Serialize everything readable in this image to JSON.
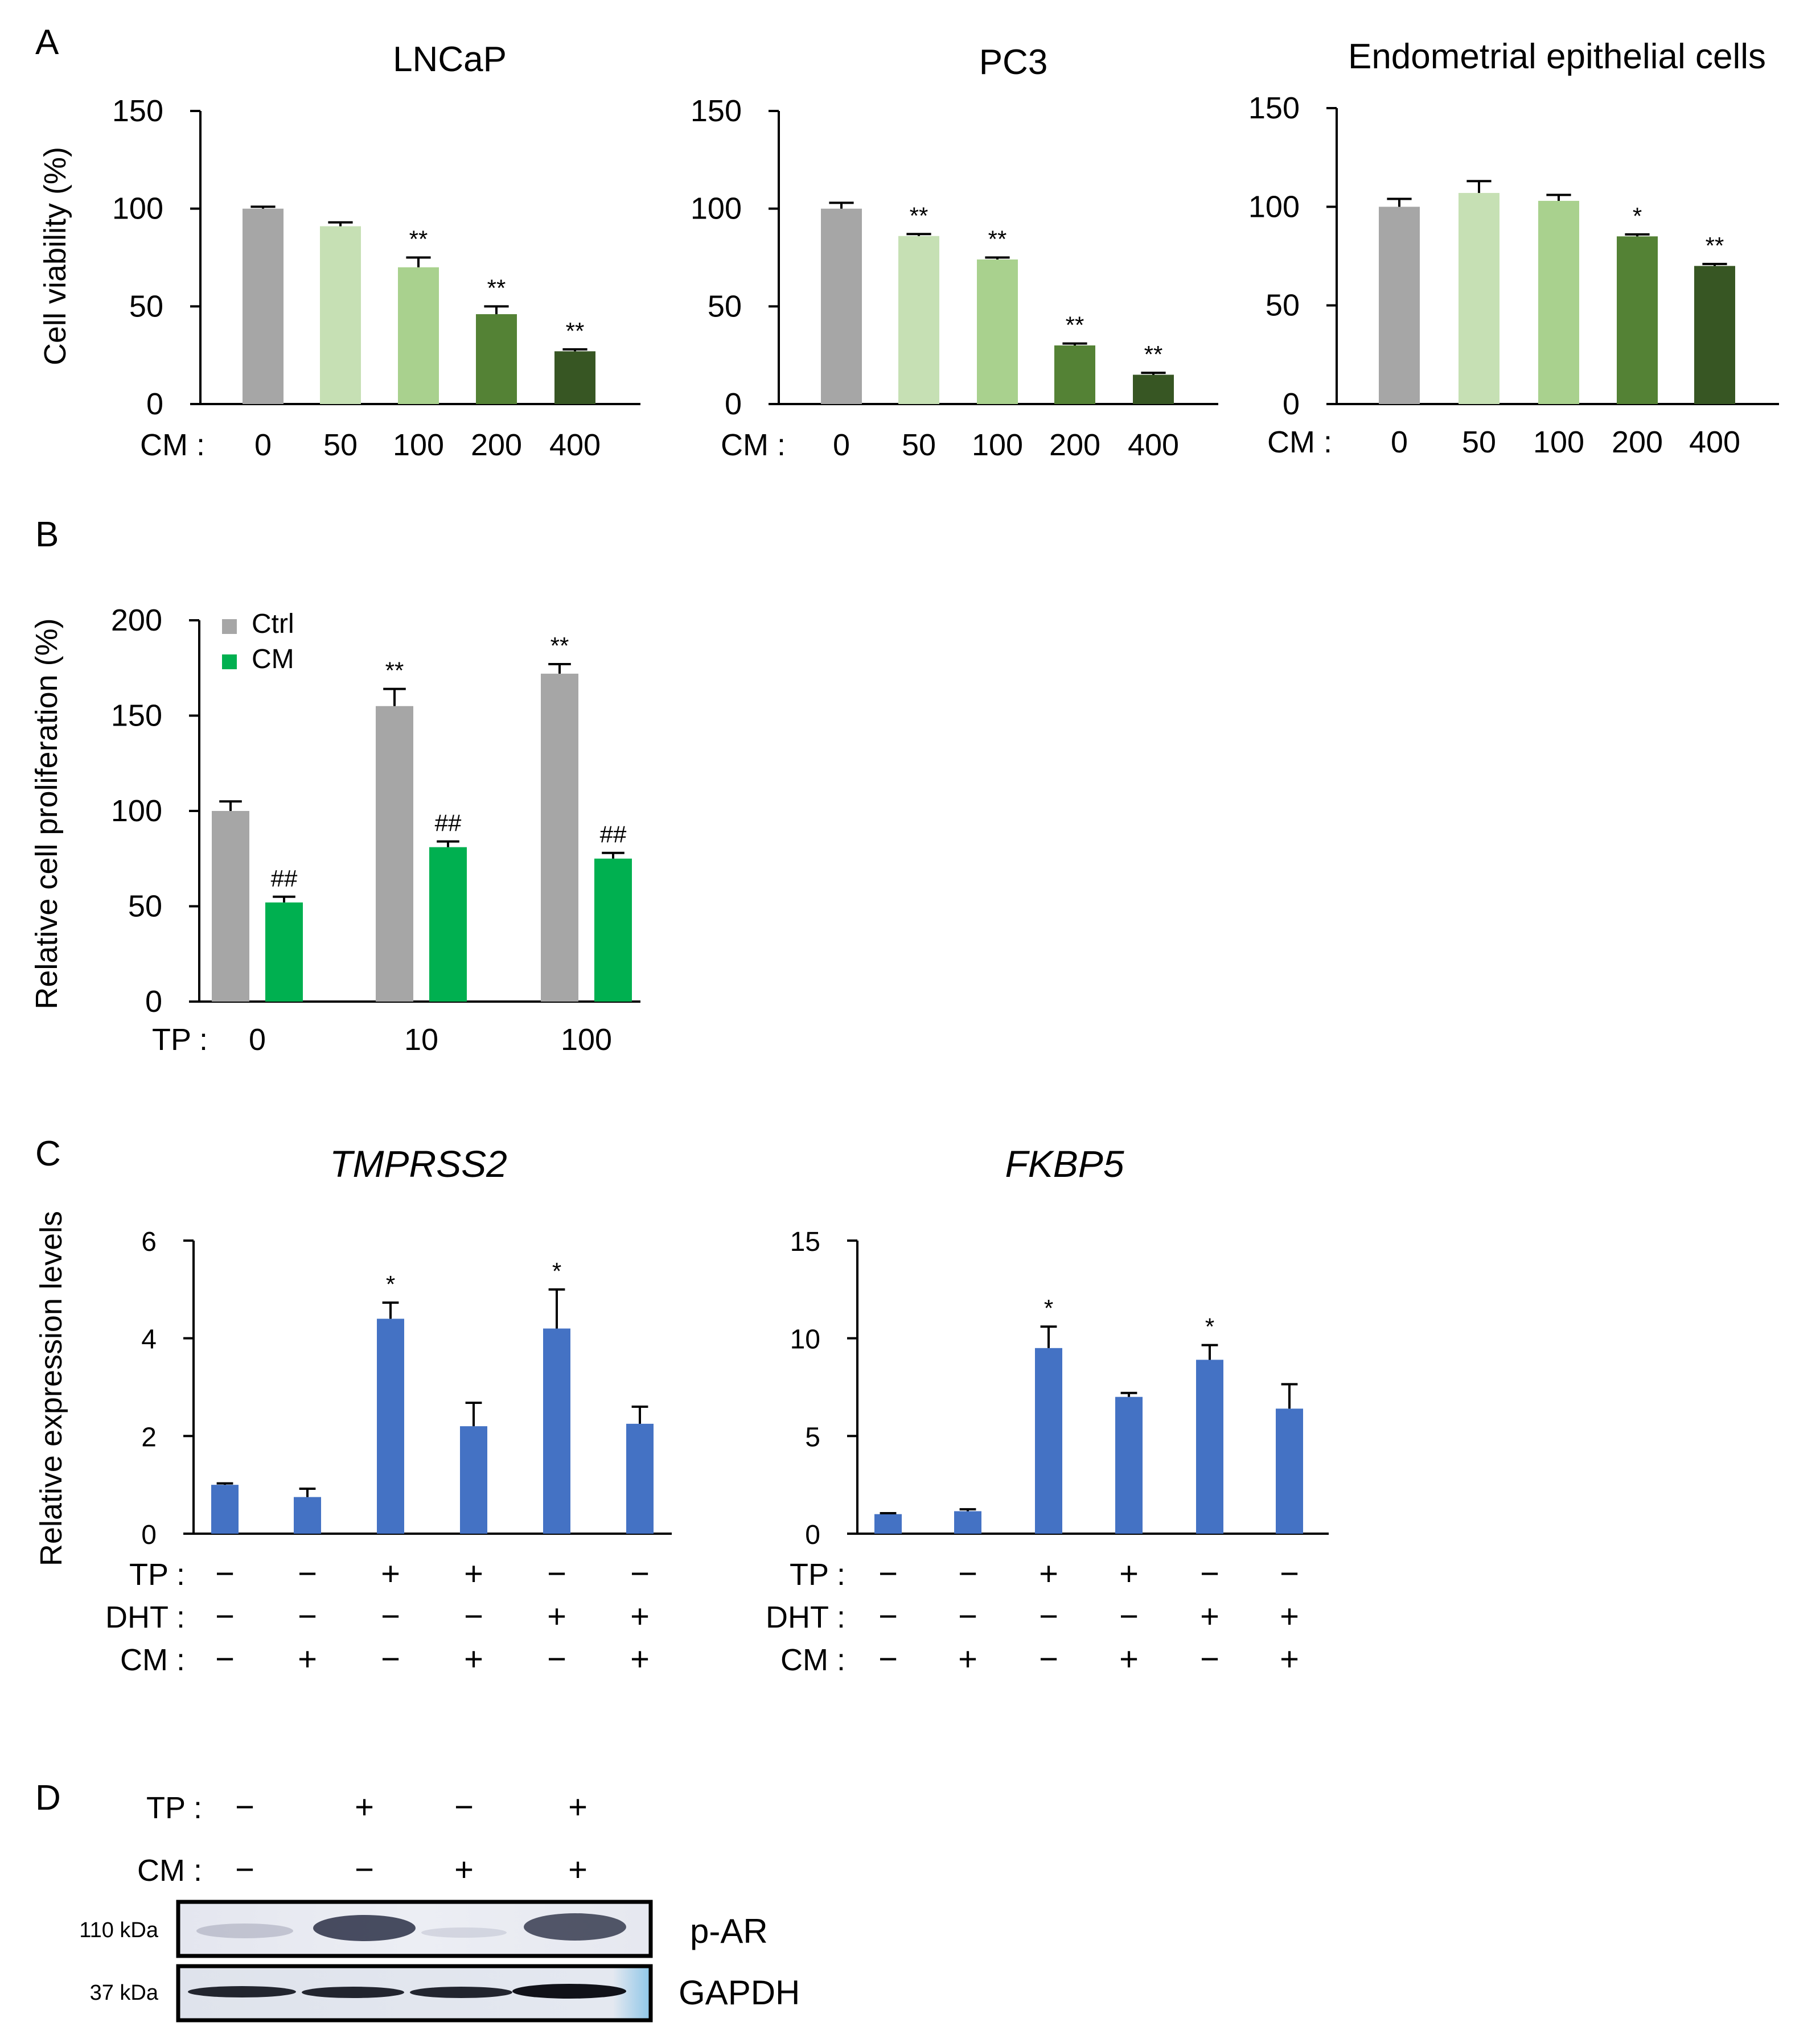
{
  "panels": {
    "A": {
      "letter": "A"
    },
    "B": {
      "letter": "B"
    },
    "C": {
      "letter": "C"
    },
    "D": {
      "letter": "D"
    }
  },
  "chart_data": [
    {
      "id": "A1",
      "type": "bar",
      "title": "LNCaP",
      "ylabel": "Cell viability (%)",
      "xlabel": "",
      "row_label": "CM :",
      "ylim": [
        0,
        150
      ],
      "yticks": [
        0,
        50,
        100,
        150
      ],
      "categories": [
        "0",
        "50",
        "100",
        "200",
        "400"
      ],
      "values": [
        100,
        91,
        70,
        46,
        27
      ],
      "errors": [
        1,
        2,
        5,
        4,
        1
      ],
      "colors": [
        "#a6a6a6",
        "#c6e0b4",
        "#a9d18e",
        "#548235",
        "#375623"
      ],
      "annotations": [
        "",
        "",
        "**",
        "**",
        "**"
      ]
    },
    {
      "id": "A2",
      "type": "bar",
      "title": "PC3",
      "ylabel": "",
      "xlabel": "",
      "row_label": "CM :",
      "ylim": [
        0,
        150
      ],
      "yticks": [
        0,
        50,
        100,
        150
      ],
      "categories": [
        "0",
        "50",
        "100",
        "200",
        "400"
      ],
      "values": [
        100,
        86,
        74,
        30,
        15
      ],
      "errors": [
        3,
        1,
        1,
        1,
        1
      ],
      "colors": [
        "#a6a6a6",
        "#c6e0b4",
        "#a9d18e",
        "#548235",
        "#375623"
      ],
      "annotations": [
        "",
        "**",
        "**",
        "**",
        "**"
      ]
    },
    {
      "id": "A3",
      "type": "bar",
      "title": "Endometrial epithelial cells",
      "ylabel": "",
      "xlabel": "",
      "row_label": "CM :",
      "ylim": [
        0,
        150
      ],
      "yticks": [
        0,
        50,
        100,
        150
      ],
      "categories": [
        "0",
        "50",
        "100",
        "200",
        "400"
      ],
      "values": [
        100,
        107,
        103,
        85,
        70
      ],
      "errors": [
        4,
        6,
        3,
        1,
        1
      ],
      "colors": [
        "#a6a6a6",
        "#c6e0b4",
        "#a9d18e",
        "#548235",
        "#375623"
      ],
      "annotations": [
        "",
        "",
        "",
        "*",
        "**"
      ]
    },
    {
      "id": "B",
      "type": "bar",
      "title": "",
      "ylabel": "Relative cell proliferation (%)",
      "xlabel": "",
      "row_label": "TP :",
      "ylim": [
        0,
        200
      ],
      "yticks": [
        0,
        50,
        100,
        150,
        200
      ],
      "categories": [
        "0",
        "10",
        "100"
      ],
      "legend_position": "top-left",
      "series": [
        {
          "name": "Ctrl",
          "color": "#a6a6a6",
          "values": [
            100,
            155,
            172
          ],
          "errors": [
            5,
            9,
            5
          ],
          "annotations": [
            "",
            "**",
            "**"
          ]
        },
        {
          "name": "CM",
          "color": "#00b050",
          "values": [
            52,
            81,
            75
          ],
          "errors": [
            3,
            3,
            3
          ],
          "annotations": [
            "##",
            "##",
            "##"
          ]
        }
      ]
    },
    {
      "id": "C1",
      "type": "bar",
      "title": "TMPRSS2",
      "ylabel": "Relative expression levels",
      "xlabel": "",
      "ylim": [
        0,
        6
      ],
      "yticks": [
        0,
        2,
        4,
        6
      ],
      "categories": [
        "1",
        "2",
        "3",
        "4",
        "5",
        "6"
      ],
      "values": [
        1.0,
        0.75,
        4.4,
        2.2,
        4.2,
        2.25
      ],
      "errors": [
        0.03,
        0.17,
        0.33,
        0.48,
        0.8,
        0.35
      ],
      "color": "#4472c4",
      "annotations": [
        "",
        "",
        "*",
        "",
        "*",
        ""
      ],
      "condition_rows": [
        {
          "label": "TP :",
          "symbols": [
            "−",
            "−",
            "+",
            "+",
            "−",
            "−"
          ]
        },
        {
          "label": "DHT :",
          "symbols": [
            "−",
            "−",
            "−",
            "−",
            "+",
            "+"
          ]
        },
        {
          "label": "CM :",
          "symbols": [
            "−",
            "+",
            "−",
            "+",
            "−",
            "+"
          ]
        }
      ]
    },
    {
      "id": "C2",
      "type": "bar",
      "title": "FKBP5",
      "ylabel": "",
      "xlabel": "",
      "ylim": [
        0,
        15
      ],
      "yticks": [
        0,
        5,
        10,
        15
      ],
      "categories": [
        "1",
        "2",
        "3",
        "4",
        "5",
        "6"
      ],
      "values": [
        1.0,
        1.15,
        9.5,
        7.0,
        8.9,
        6.4
      ],
      "errors": [
        0.05,
        0.1,
        1.1,
        0.2,
        0.75,
        1.25
      ],
      "color": "#4472c4",
      "annotations": [
        "",
        "",
        "*",
        "",
        "*",
        ""
      ],
      "condition_rows": [
        {
          "label": "TP :",
          "symbols": [
            "−",
            "−",
            "+",
            "+",
            "−",
            "−"
          ]
        },
        {
          "label": "DHT :",
          "symbols": [
            "−",
            "−",
            "−",
            "−",
            "+",
            "+"
          ]
        },
        {
          "label": "CM :",
          "symbols": [
            "−",
            "+",
            "−",
            "+",
            "−",
            "+"
          ]
        }
      ]
    }
  ],
  "western": {
    "rows": [
      {
        "label": "TP :",
        "symbols": [
          "−",
          "+",
          "−",
          "+"
        ]
      },
      {
        "label": "CM :",
        "symbols": [
          "−",
          "−",
          "+",
          "+"
        ]
      }
    ],
    "blots": [
      {
        "kda": "110 kDa",
        "name": "p-AR"
      },
      {
        "kda": "37 kDa",
        "name": "GAPDH"
      }
    ]
  }
}
